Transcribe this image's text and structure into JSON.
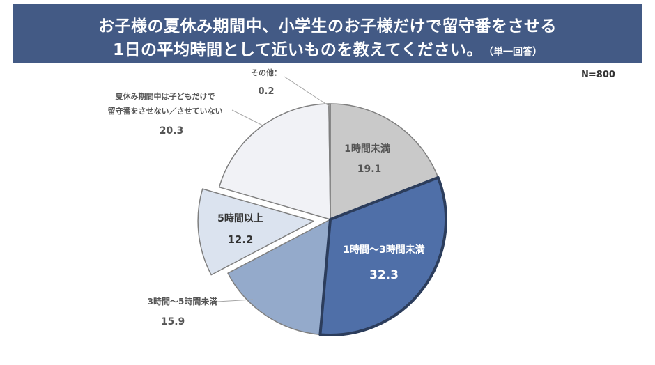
{
  "header": {
    "title_line1": "お子様の夏休み期間中、小学生のお子様だけで留守番をさせる",
    "title_line2": "1日の平均時間として近いものを教えてください。",
    "title_note": "（単一回答）"
  },
  "sample_size": "N=800",
  "chart_data": {
    "type": "pie",
    "title": "お子様の夏休み期間中、小学生のお子様だけで留守番をさせる1日の平均時間として近いものを教えてください。（単一回答）",
    "note": "N=800",
    "unit": "%",
    "slices": [
      {
        "label": "1時間未満",
        "value": 19.1,
        "color": "#c9c9c9"
      },
      {
        "label": "1時間〜3時間未満",
        "value": 32.3,
        "color": "#4f6fa8",
        "highlight": true
      },
      {
        "label": "3時間〜5時間未満",
        "value": 15.9,
        "color": "#94aacb"
      },
      {
        "label": "5時間以上",
        "value": 12.2,
        "color": "#dbe3ef",
        "exploded": true
      },
      {
        "label": "夏休み期間中は子どもだけで留守番をさせない／させていない",
        "label_lines": [
          "夏休み期間中は子どもだけで",
          "留守番をさせない／させていない"
        ],
        "value": 20.3,
        "color": "#f1f2f6"
      },
      {
        "label": "その他：",
        "value": 0.2,
        "color": "#bfbfbf"
      }
    ]
  }
}
